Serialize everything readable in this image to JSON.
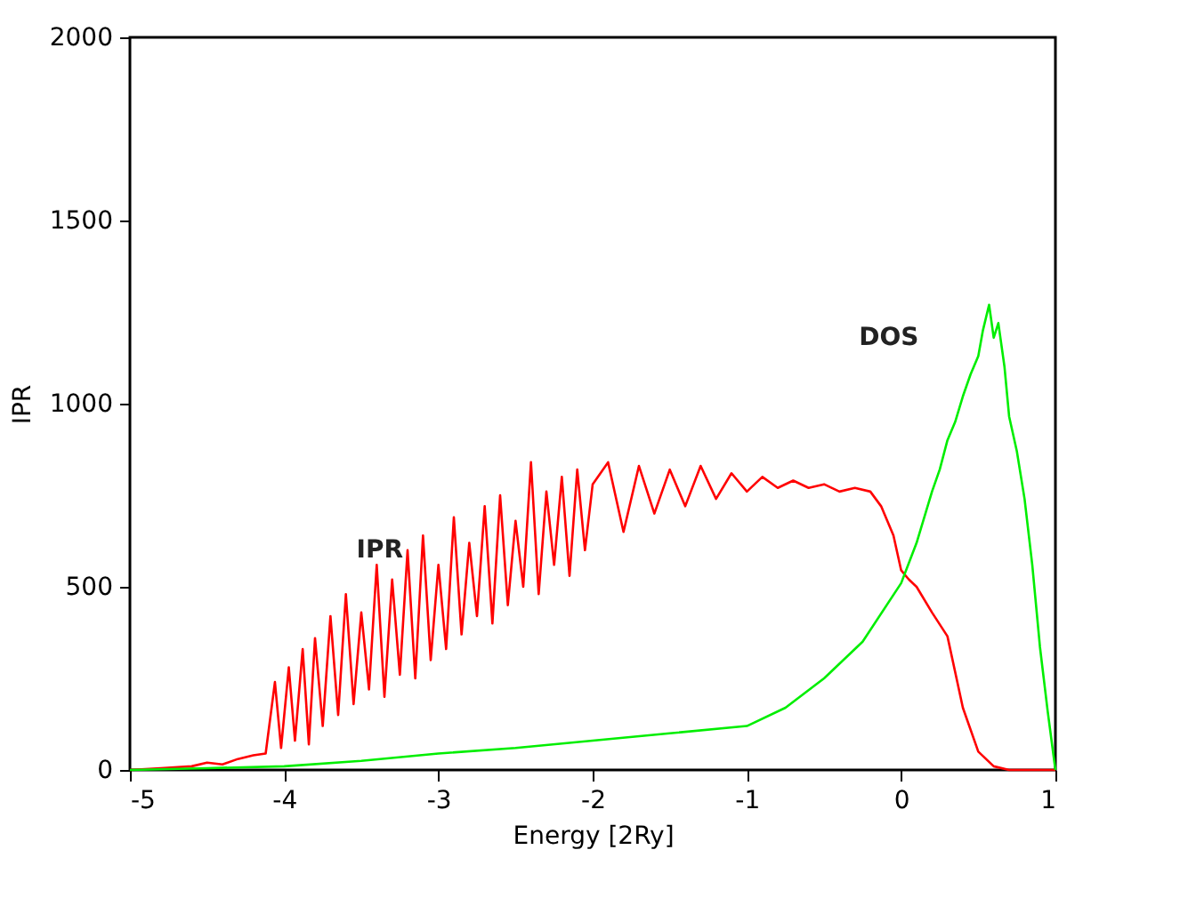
{
  "chart_data": {
    "type": "line",
    "xlabel": "Energy [2Ry]",
    "ylabel": "IPR",
    "xlim": [
      -5,
      1
    ],
    "xticks": [
      -5,
      -4,
      -3,
      -2,
      -1,
      0,
      1
    ],
    "ylim": [
      0,
      2000
    ],
    "yticks": [
      0,
      500,
      1000,
      1500,
      2000
    ],
    "grid": false,
    "marker": "none",
    "line_style": "solid",
    "series": [
      {
        "name": "IPR",
        "color": "#ff0000",
        "x": [
          -5.0,
          -4.8,
          -4.6,
          -4.5,
          -4.4,
          -4.3,
          -4.2,
          -4.12,
          -4.06,
          -4.02,
          -3.97,
          -3.93,
          -3.88,
          -3.84,
          -3.8,
          -3.75,
          -3.7,
          -3.65,
          -3.6,
          -3.55,
          -3.5,
          -3.45,
          -3.4,
          -3.35,
          -3.3,
          -3.25,
          -3.2,
          -3.15,
          -3.1,
          -3.05,
          -3.0,
          -2.95,
          -2.9,
          -2.85,
          -2.8,
          -2.75,
          -2.7,
          -2.65,
          -2.6,
          -2.55,
          -2.5,
          -2.45,
          -2.4,
          -2.35,
          -2.3,
          -2.25,
          -2.2,
          -2.15,
          -2.1,
          -2.05,
          -2.0,
          -1.9,
          -1.8,
          -1.7,
          -1.6,
          -1.5,
          -1.4,
          -1.3,
          -1.2,
          -1.1,
          -1.0,
          -0.9,
          -0.8,
          -0.7,
          -0.6,
          -0.5,
          -0.4,
          -0.3,
          -0.2,
          -0.13,
          -0.05,
          0.0,
          0.05,
          0.1,
          0.2,
          0.3,
          0.4,
          0.5,
          0.6,
          0.7,
          1.0
        ],
        "values": [
          0,
          5,
          10,
          20,
          15,
          30,
          40,
          45,
          240,
          60,
          280,
          80,
          330,
          70,
          360,
          120,
          420,
          150,
          480,
          180,
          430,
          220,
          560,
          200,
          520,
          260,
          600,
          250,
          640,
          300,
          560,
          330,
          690,
          370,
          620,
          420,
          720,
          400,
          750,
          450,
          680,
          500,
          840,
          480,
          760,
          560,
          800,
          530,
          820,
          600,
          780,
          840,
          650,
          830,
          700,
          820,
          720,
          830,
          740,
          810,
          760,
          800,
          770,
          790,
          770,
          780,
          760,
          770,
          760,
          720,
          640,
          545,
          520,
          500,
          430,
          365,
          170,
          50,
          10,
          0,
          0
        ]
      },
      {
        "name": "DOS",
        "color": "#00ee00",
        "x": [
          -5.0,
          -4.5,
          -4.0,
          -3.5,
          -3.0,
          -2.5,
          -2.0,
          -1.5,
          -1.0,
          -0.75,
          -0.5,
          -0.25,
          0.0,
          0.1,
          0.2,
          0.25,
          0.3,
          0.35,
          0.4,
          0.45,
          0.5,
          0.53,
          0.57,
          0.6,
          0.63,
          0.67,
          0.7,
          0.75,
          0.8,
          0.85,
          0.9,
          0.95,
          1.0
        ],
        "values": [
          0,
          5,
          10,
          25,
          45,
          60,
          80,
          100,
          120,
          170,
          250,
          350,
          510,
          620,
          760,
          820,
          900,
          950,
          1020,
          1080,
          1130,
          1200,
          1270,
          1180,
          1220,
          1100,
          965,
          870,
          740,
          560,
          335,
          160,
          0
        ]
      }
    ]
  }
}
